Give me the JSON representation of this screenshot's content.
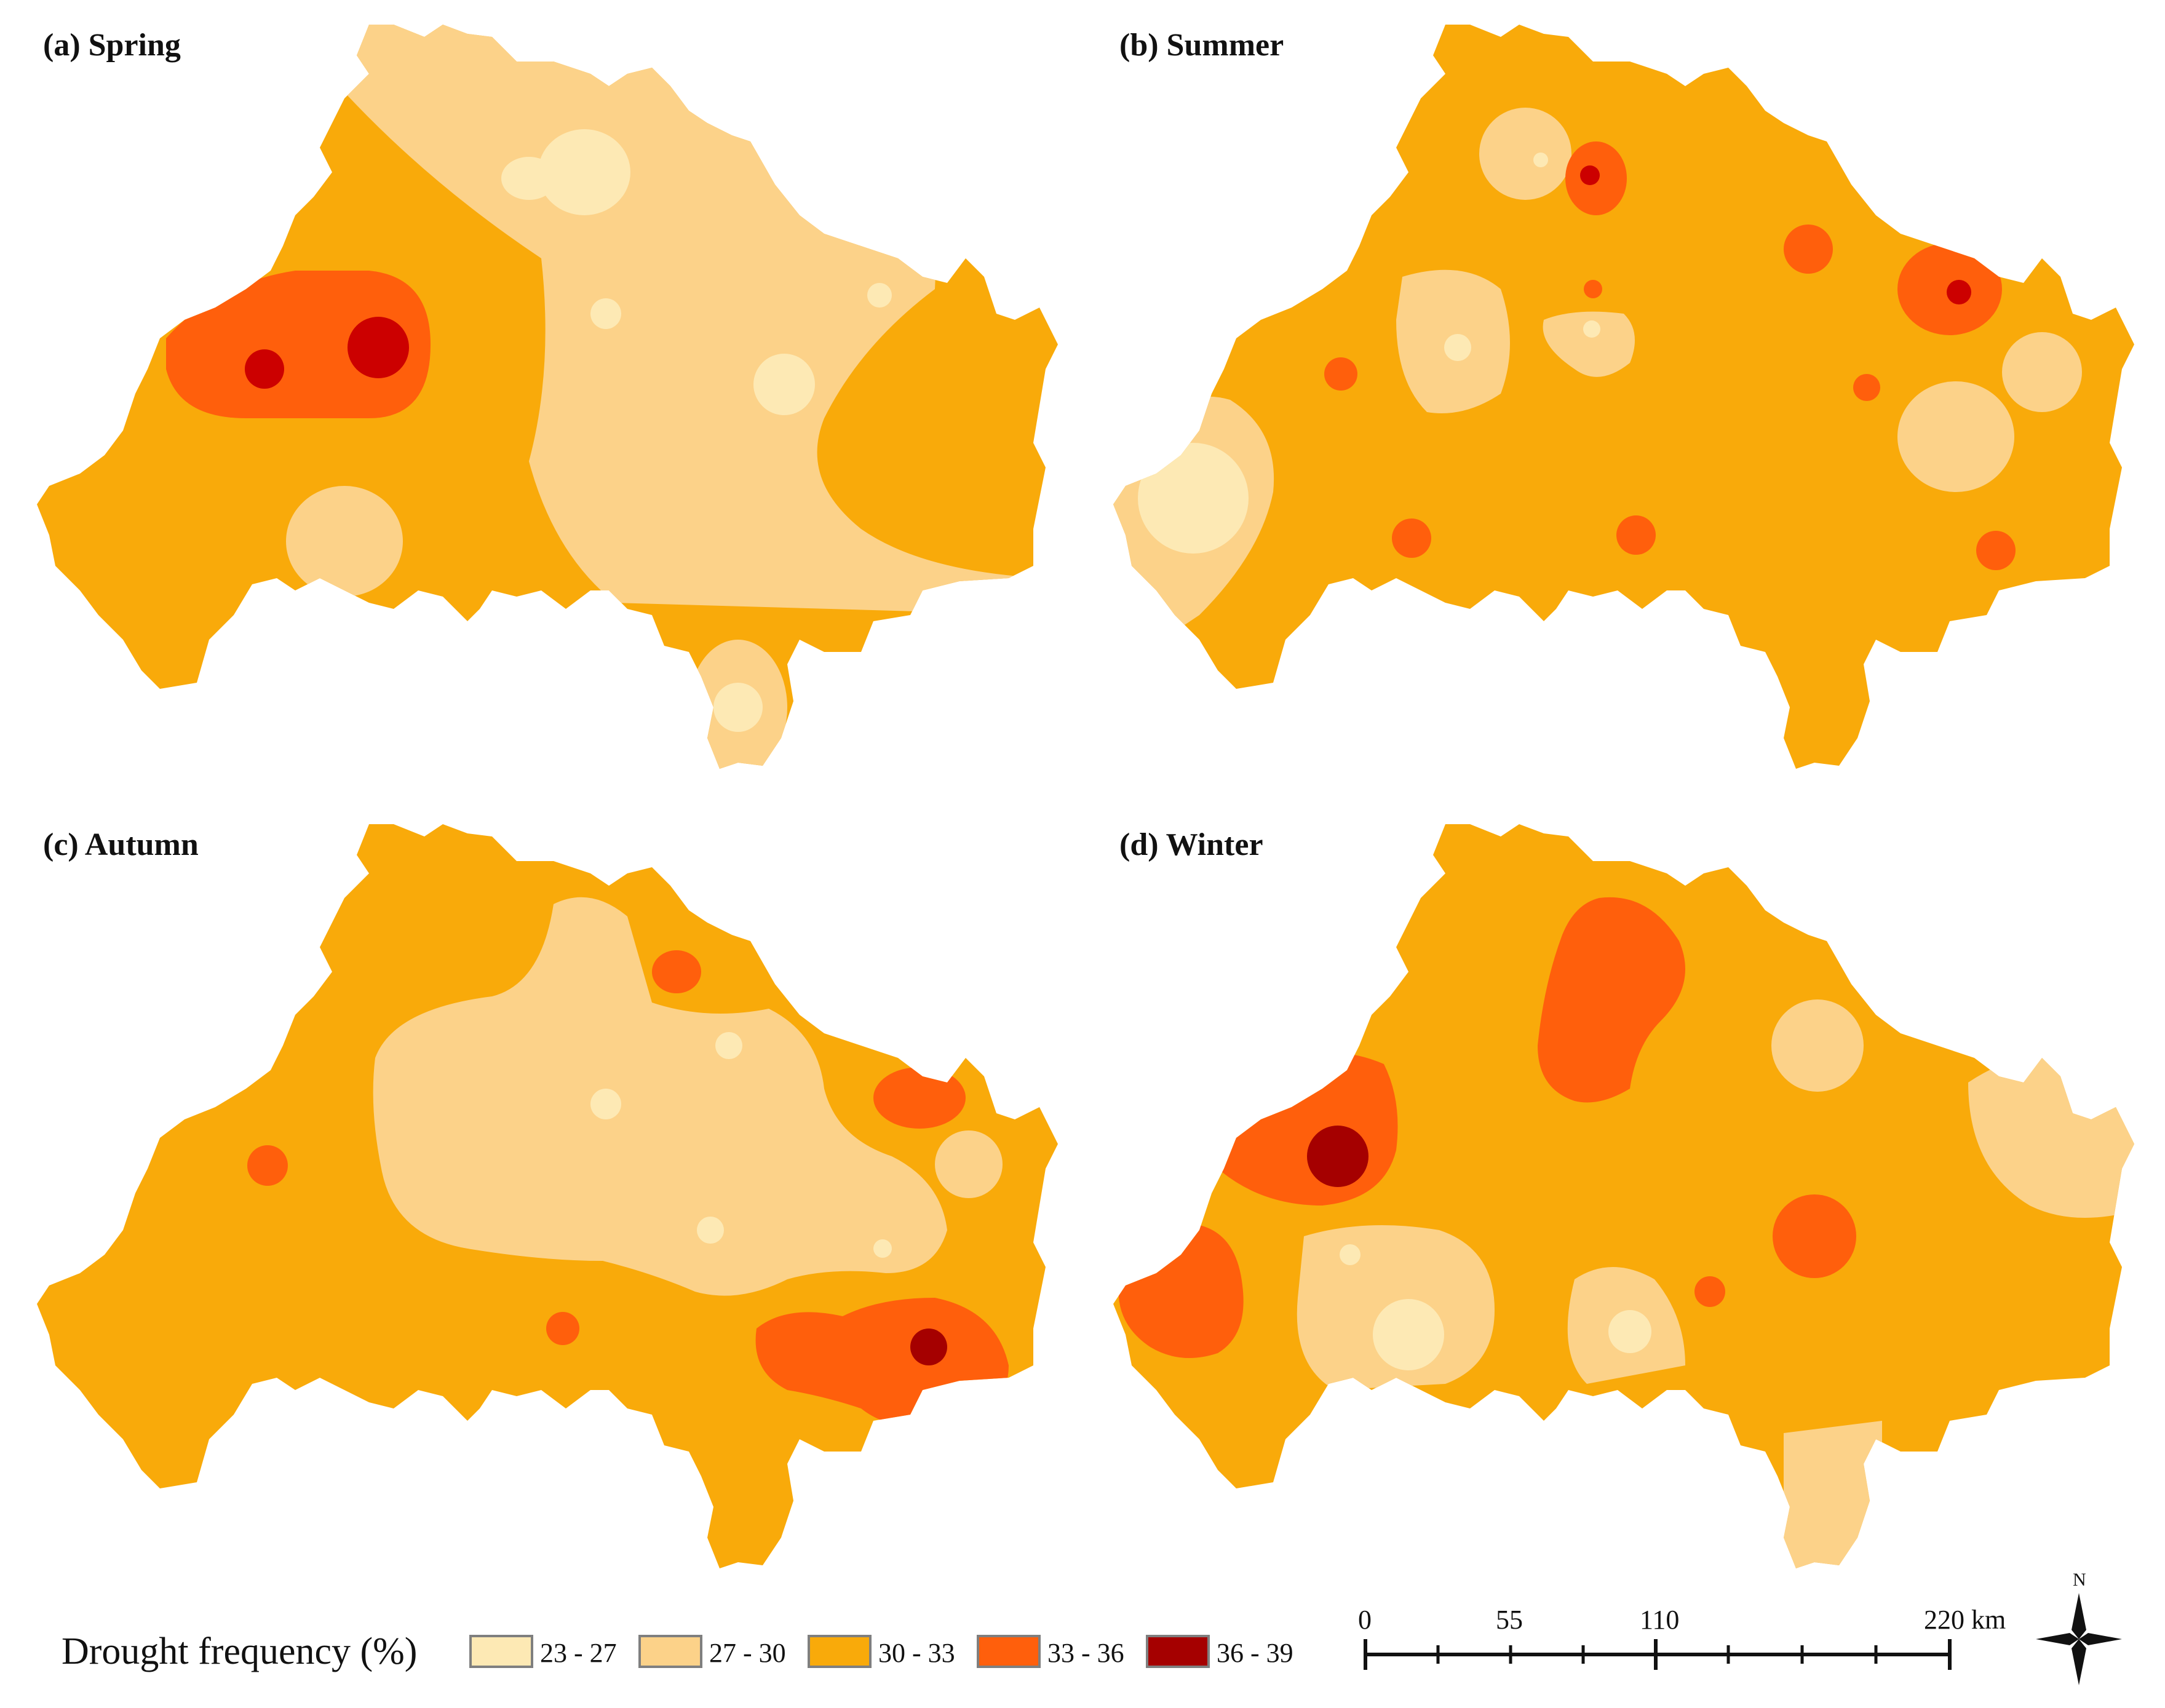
{
  "panels": [
    {
      "title": "(a) Spring"
    },
    {
      "title": "(b) Summer"
    },
    {
      "title": "(c) Autumn"
    },
    {
      "title": "(d) Winter"
    }
  ],
  "legend": {
    "title": "Drought frequency (%)",
    "classes": [
      {
        "label": "23 - 27",
        "color": "#FDE9B4"
      },
      {
        "label": "27 - 30",
        "color": "#FCD289"
      },
      {
        "label": "30 - 33",
        "color": "#F9AA0A"
      },
      {
        "label": "33 - 36",
        "color": "#FF5F0C"
      },
      {
        "label": "36 - 39",
        "color": "#A50000"
      }
    ]
  },
  "scale_bar": {
    "ticks": [
      "0",
      "55",
      "110",
      "220 km"
    ]
  },
  "north_arrow": {
    "label": "N"
  }
}
